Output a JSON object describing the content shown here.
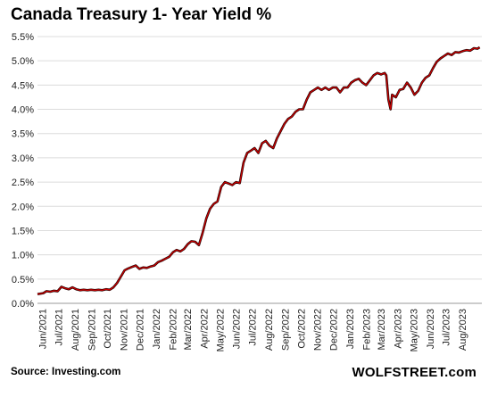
{
  "chart_data": {
    "type": "line",
    "title": "Canada Treasury 1- Year Yield %",
    "xlabel": "",
    "ylabel": "",
    "ylim": [
      0,
      5.5
    ],
    "y_ticks": [
      "0.0%",
      "0.5%",
      "1.0%",
      "1.5%",
      "2.0%",
      "2.5%",
      "3.0%",
      "3.5%",
      "4.0%",
      "4.5%",
      "5.0%",
      "5.5%"
    ],
    "y_tick_values": [
      0,
      0.5,
      1.0,
      1.5,
      2.0,
      2.5,
      3.0,
      3.5,
      4.0,
      4.5,
      5.0,
      5.5
    ],
    "x_ticks": [
      "Jun/2021",
      "Jul/2021",
      "Aug/2021",
      "Sep/2021",
      "Oct/2021",
      "Nov/2021",
      "Dec/2021",
      "Jan/2022",
      "Feb/2022",
      "Mar/2022",
      "Apr/2022",
      "May/2022",
      "Jun/2022",
      "Jul/2022",
      "Aug/2022",
      "Sep/2022",
      "Oct/2022",
      "Nov/2022",
      "Dec/2022",
      "Jan/2023",
      "Feb/2023",
      "Mar/2023",
      "Apr/2023",
      "May/2023",
      "Jun/2023",
      "Jul/2023",
      "Aug/2023"
    ],
    "x_range": [
      "2021-05-21",
      "2023-09-05"
    ],
    "grid": {
      "horizontal": true,
      "vertical": false
    },
    "legend": "none",
    "series": [
      {
        "color": "#cc0000",
        "points": [
          [
            "2021-05-21",
            0.19
          ],
          [
            "2021-06-01",
            0.21
          ],
          [
            "2021-06-07",
            0.25
          ],
          [
            "2021-06-14",
            0.24
          ],
          [
            "2021-06-21",
            0.26
          ],
          [
            "2021-06-28",
            0.25
          ],
          [
            "2021-07-05",
            0.34
          ],
          [
            "2021-07-12",
            0.31
          ],
          [
            "2021-07-19",
            0.29
          ],
          [
            "2021-07-26",
            0.33
          ],
          [
            "2021-08-02",
            0.29
          ],
          [
            "2021-08-09",
            0.27
          ],
          [
            "2021-08-16",
            0.28
          ],
          [
            "2021-08-23",
            0.27
          ],
          [
            "2021-08-30",
            0.28
          ],
          [
            "2021-09-06",
            0.27
          ],
          [
            "2021-09-13",
            0.28
          ],
          [
            "2021-09-20",
            0.27
          ],
          [
            "2021-09-27",
            0.29
          ],
          [
            "2021-10-04",
            0.28
          ],
          [
            "2021-10-11",
            0.33
          ],
          [
            "2021-10-18",
            0.42
          ],
          [
            "2021-10-25",
            0.55
          ],
          [
            "2021-11-01",
            0.68
          ],
          [
            "2021-11-08",
            0.72
          ],
          [
            "2021-11-15",
            0.75
          ],
          [
            "2021-11-22",
            0.78
          ],
          [
            "2021-11-29",
            0.71
          ],
          [
            "2021-12-06",
            0.74
          ],
          [
            "2021-12-13",
            0.73
          ],
          [
            "2021-12-20",
            0.76
          ],
          [
            "2021-12-27",
            0.78
          ],
          [
            "2022-01-03",
            0.85
          ],
          [
            "2022-01-10",
            0.88
          ],
          [
            "2022-01-17",
            0.92
          ],
          [
            "2022-01-24",
            0.96
          ],
          [
            "2022-01-31",
            1.05
          ],
          [
            "2022-02-07",
            1.1
          ],
          [
            "2022-02-14",
            1.07
          ],
          [
            "2022-02-21",
            1.12
          ],
          [
            "2022-02-28",
            1.22
          ],
          [
            "2022-03-07",
            1.28
          ],
          [
            "2022-03-14",
            1.27
          ],
          [
            "2022-03-21",
            1.2
          ],
          [
            "2022-03-28",
            1.45
          ],
          [
            "2022-04-04",
            1.75
          ],
          [
            "2022-04-11",
            1.95
          ],
          [
            "2022-04-18",
            2.05
          ],
          [
            "2022-04-25",
            2.1
          ],
          [
            "2022-05-02",
            2.4
          ],
          [
            "2022-05-09",
            2.5
          ],
          [
            "2022-05-16",
            2.47
          ],
          [
            "2022-05-23",
            2.44
          ],
          [
            "2022-05-30",
            2.5
          ],
          [
            "2022-06-06",
            2.48
          ],
          [
            "2022-06-13",
            2.9
          ],
          [
            "2022-06-20",
            3.1
          ],
          [
            "2022-06-27",
            3.15
          ],
          [
            "2022-07-04",
            3.2
          ],
          [
            "2022-07-11",
            3.1
          ],
          [
            "2022-07-18",
            3.3
          ],
          [
            "2022-07-25",
            3.35
          ],
          [
            "2022-08-01",
            3.25
          ],
          [
            "2022-08-08",
            3.2
          ],
          [
            "2022-08-15",
            3.4
          ],
          [
            "2022-08-22",
            3.55
          ],
          [
            "2022-08-29",
            3.7
          ],
          [
            "2022-09-05",
            3.8
          ],
          [
            "2022-09-12",
            3.85
          ],
          [
            "2022-09-19",
            3.95
          ],
          [
            "2022-09-26",
            4.0
          ],
          [
            "2022-10-03",
            4.0
          ],
          [
            "2022-10-10",
            4.2
          ],
          [
            "2022-10-17",
            4.35
          ],
          [
            "2022-10-24",
            4.4
          ],
          [
            "2022-10-31",
            4.45
          ],
          [
            "2022-11-07",
            4.4
          ],
          [
            "2022-11-14",
            4.45
          ],
          [
            "2022-11-21",
            4.4
          ],
          [
            "2022-11-28",
            4.45
          ],
          [
            "2022-12-05",
            4.45
          ],
          [
            "2022-12-12",
            4.35
          ],
          [
            "2022-12-19",
            4.45
          ],
          [
            "2022-12-26",
            4.45
          ],
          [
            "2023-01-02",
            4.55
          ],
          [
            "2023-01-09",
            4.6
          ],
          [
            "2023-01-16",
            4.63
          ],
          [
            "2023-01-23",
            4.55
          ],
          [
            "2023-01-30",
            4.5
          ],
          [
            "2023-02-06",
            4.6
          ],
          [
            "2023-02-13",
            4.7
          ],
          [
            "2023-02-20",
            4.75
          ],
          [
            "2023-02-27",
            4.72
          ],
          [
            "2023-03-06",
            4.75
          ],
          [
            "2023-03-09",
            4.7
          ],
          [
            "2023-03-13",
            4.2
          ],
          [
            "2023-03-17",
            4.0
          ],
          [
            "2023-03-20",
            4.3
          ],
          [
            "2023-03-27",
            4.25
          ],
          [
            "2023-04-03",
            4.4
          ],
          [
            "2023-04-10",
            4.42
          ],
          [
            "2023-04-17",
            4.55
          ],
          [
            "2023-04-24",
            4.45
          ],
          [
            "2023-05-01",
            4.3
          ],
          [
            "2023-05-08",
            4.38
          ],
          [
            "2023-05-15",
            4.55
          ],
          [
            "2023-05-22",
            4.65
          ],
          [
            "2023-05-29",
            4.7
          ],
          [
            "2023-06-05",
            4.85
          ],
          [
            "2023-06-12",
            4.98
          ],
          [
            "2023-06-19",
            5.05
          ],
          [
            "2023-06-26",
            5.1
          ],
          [
            "2023-07-03",
            5.15
          ],
          [
            "2023-07-10",
            5.12
          ],
          [
            "2023-07-17",
            5.18
          ],
          [
            "2023-07-24",
            5.17
          ],
          [
            "2023-07-31",
            5.2
          ],
          [
            "2023-08-07",
            5.22
          ],
          [
            "2023-08-14",
            5.21
          ],
          [
            "2023-08-21",
            5.26
          ],
          [
            "2023-08-28",
            5.25
          ],
          [
            "2023-09-01",
            5.28
          ]
        ]
      }
    ]
  },
  "source_note": "Source: Investing.com",
  "brand_mark": "WOLFSTREET.com"
}
